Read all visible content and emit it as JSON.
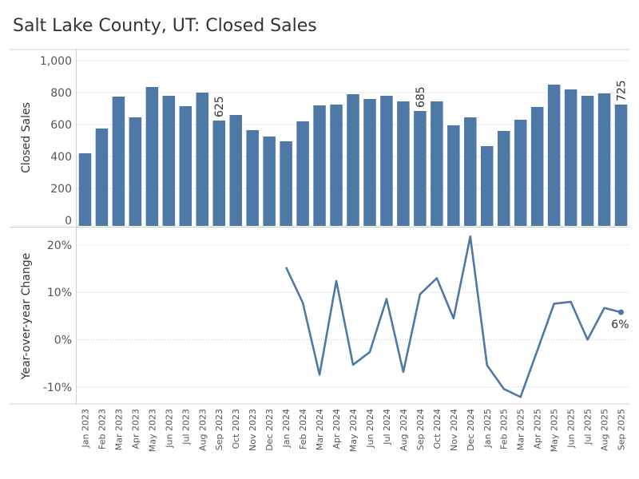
{
  "title": "Salt Lake County, UT: Closed Sales",
  "colors": {
    "series": "#4e79a7",
    "grid": "#ebebeb",
    "axis": "#cfcfcf"
  },
  "chart_data": [
    {
      "type": "bar",
      "ylabel": "Closed Sales",
      "ylim": [
        0,
        1000
      ],
      "yticks": [
        0,
        200,
        400,
        600,
        800,
        1000
      ],
      "ytick_labels": [
        "0",
        "200",
        "400",
        "600",
        "800",
        "1,000"
      ],
      "categories": [
        "Jan 2023",
        "Feb 2023",
        "Mar 2023",
        "Apr 2023",
        "May 2023",
        "Jun 2023",
        "Jul 2023",
        "Aug 2023",
        "Sep 2023",
        "Oct 2023",
        "Nov 2023",
        "Dec 2023",
        "Jan 2024",
        "Feb 2024",
        "Mar 2024",
        "Apr 2024",
        "May 2024",
        "Jun 2024",
        "Jul 2024",
        "Aug 2024",
        "Sep 2024",
        "Oct 2024",
        "Nov 2024",
        "Dec 2024",
        "Jan 2025",
        "Feb 2025",
        "Mar 2025",
        "Apr 2025",
        "May 2025",
        "Jun 2025",
        "Jul 2025",
        "Aug 2025",
        "Sep 2025"
      ],
      "values": [
        420,
        575,
        775,
        645,
        835,
        780,
        715,
        800,
        625,
        660,
        565,
        525,
        495,
        620,
        720,
        725,
        790,
        760,
        780,
        745,
        685,
        745,
        595,
        645,
        465,
        560,
        630,
        710,
        850,
        820,
        780,
        795,
        725
      ],
      "data_labels": [
        {
          "index": 8,
          "text": "625"
        },
        {
          "index": 20,
          "text": "685"
        },
        {
          "index": 32,
          "text": "725"
        }
      ],
      "grid": true
    },
    {
      "type": "line",
      "ylabel": "Year-over-year Change",
      "ylim": [
        -14,
        22
      ],
      "yticks": [
        -10,
        0,
        10,
        20
      ],
      "ytick_labels": [
        "-10%",
        "0%",
        "10%",
        "20%"
      ],
      "start_index": 12,
      "values": [
        15.3,
        7.8,
        -7.4,
        12.4,
        -5.3,
        -2.6,
        8.6,
        -6.8,
        9.6,
        13.0,
        4.5,
        21.8,
        -5.4,
        -10.4,
        -12.1,
        -2.3,
        7.6,
        8.0,
        0.0,
        6.7,
        5.8
      ],
      "data_labels": [
        {
          "index": 32,
          "text": "6%"
        }
      ],
      "grid": true
    }
  ]
}
